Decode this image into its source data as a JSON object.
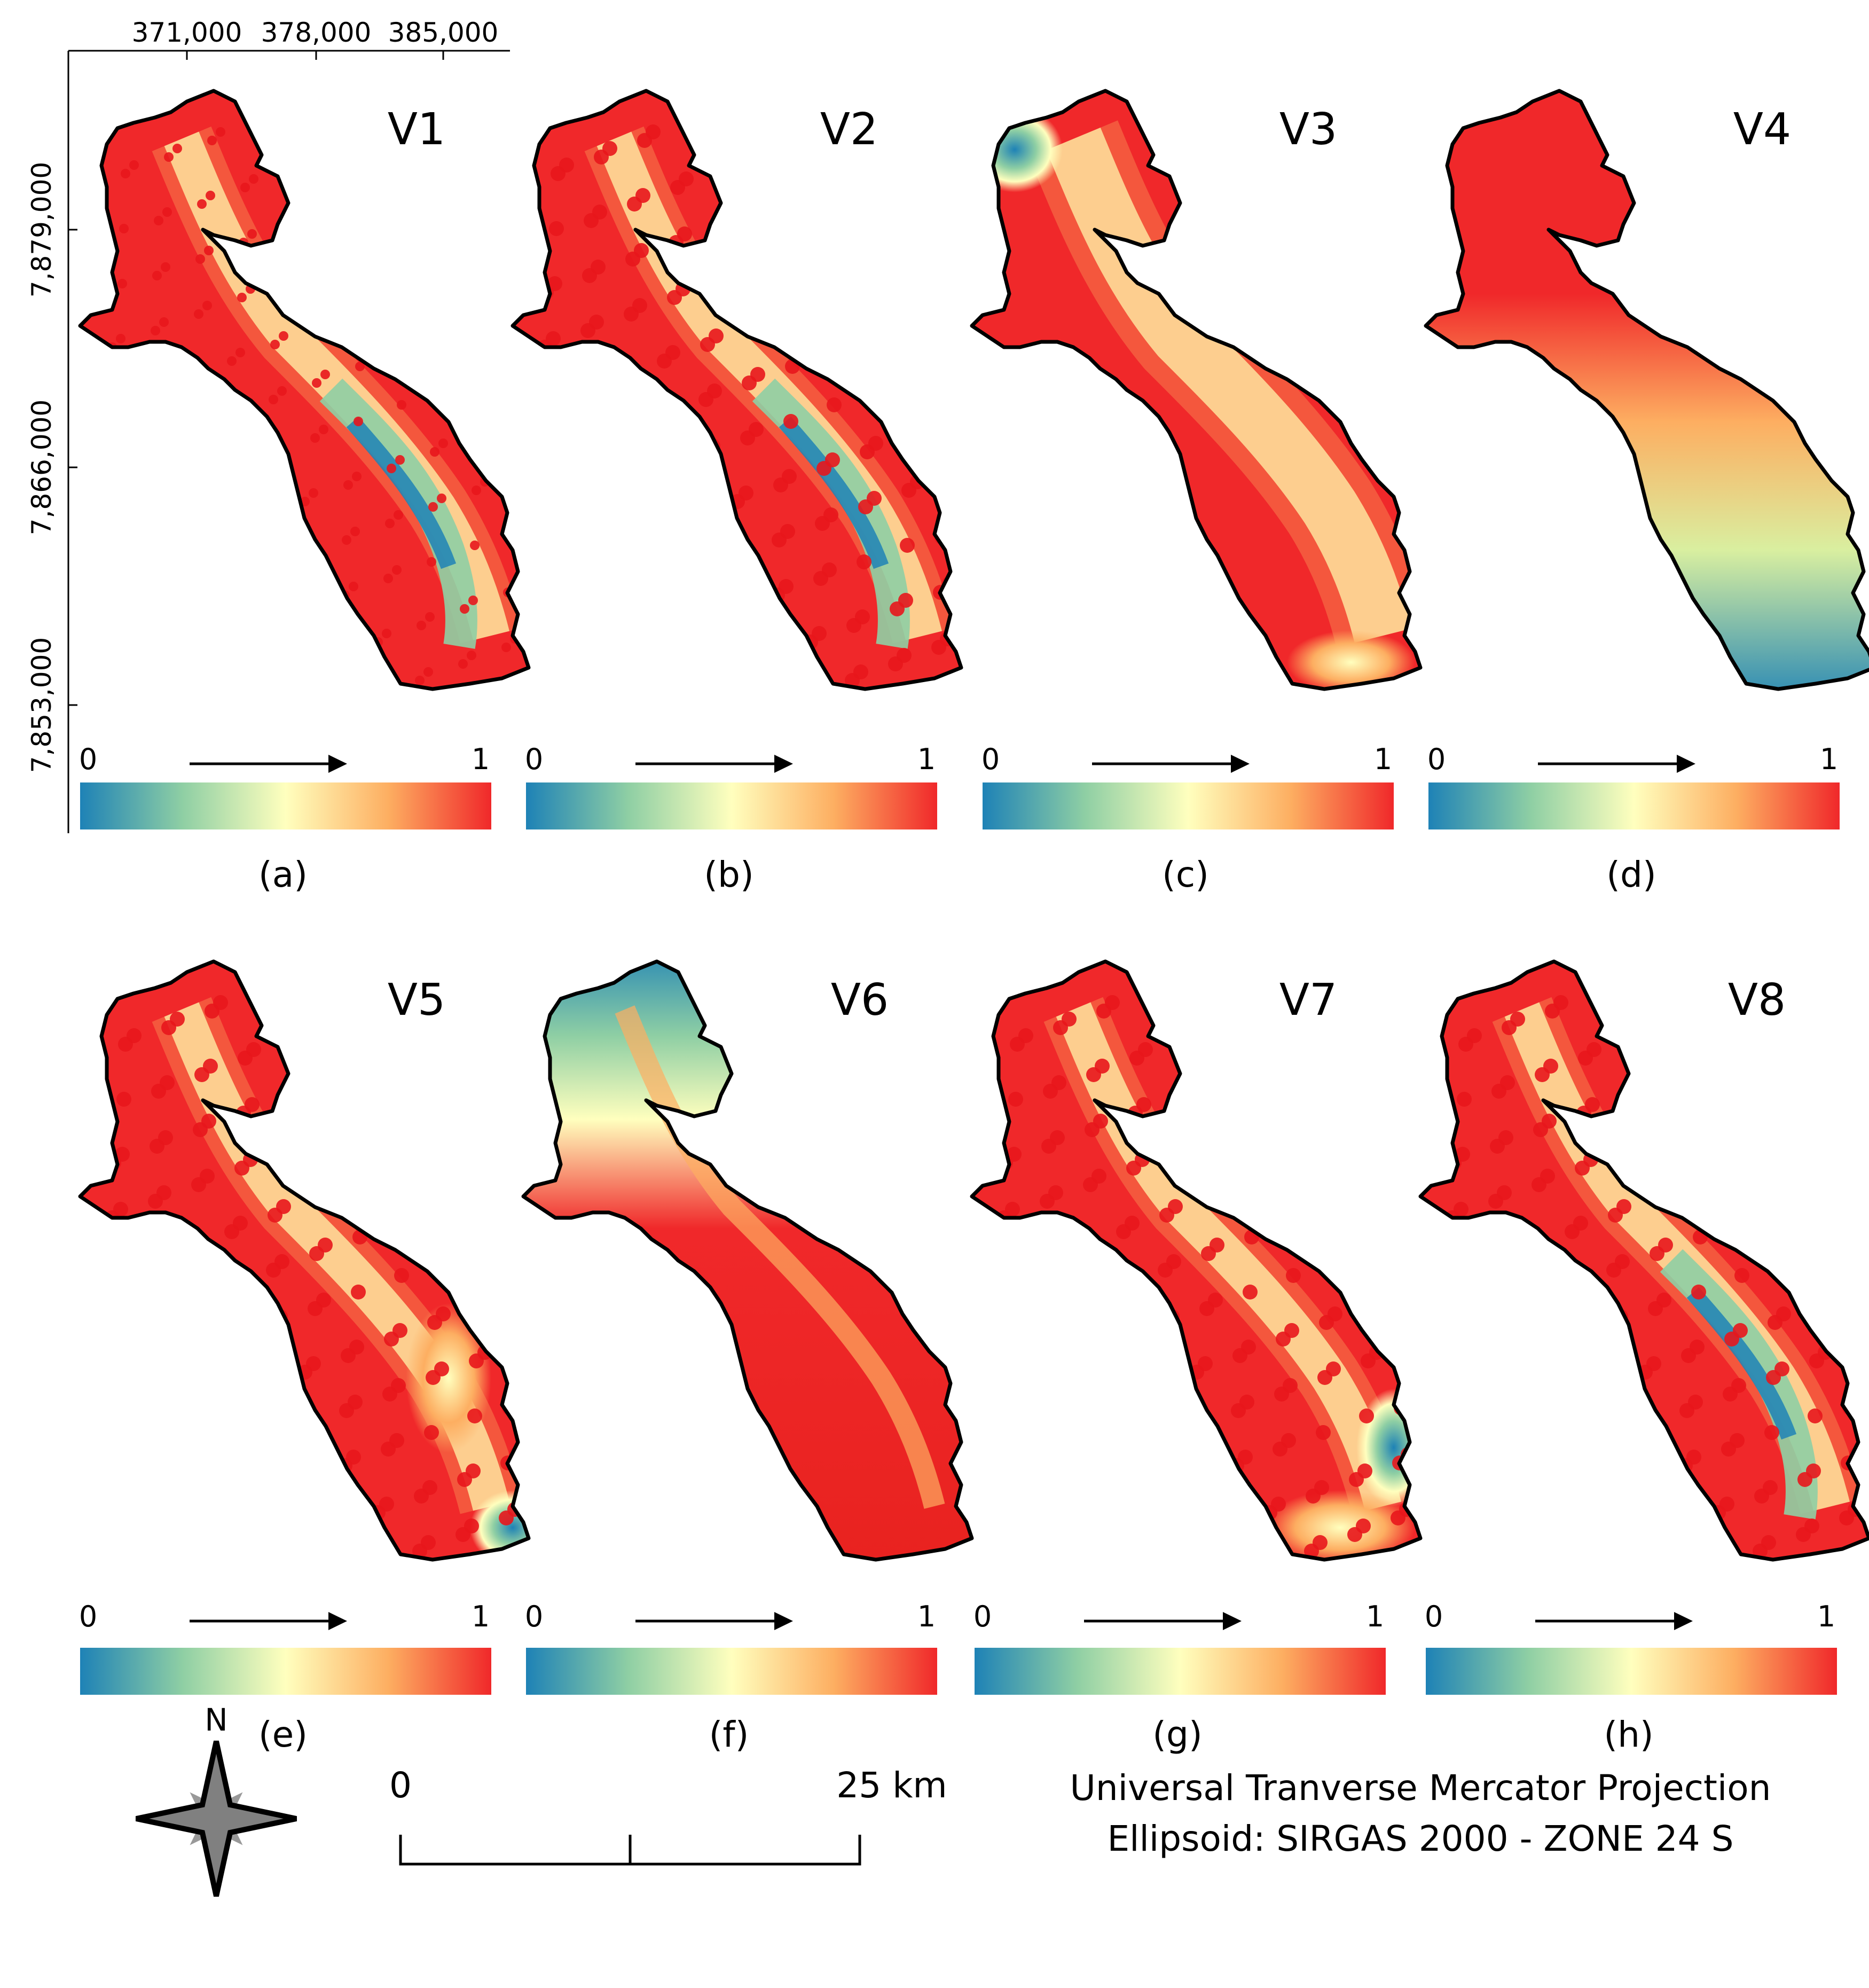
{
  "axes": {
    "x_ticks": [
      "371,000",
      "378,000",
      "385,000"
    ],
    "y_ticks": [
      "7,879,000",
      "7,866,000",
      "7,853,000"
    ]
  },
  "colorbar": {
    "colors": [
      "#1e82b6",
      "#8fcfa4",
      "#ffffbe",
      "#fdae61",
      "#f0282a"
    ],
    "min_label": "0",
    "max_label": "1"
  },
  "panels": [
    {
      "title": "V1",
      "caption": "(a)",
      "pattern": "dense spots, blue valley along center",
      "hex": "#f0282a"
    },
    {
      "title": "V2",
      "caption": "(b)",
      "pattern": "dense red network, blue valley along center",
      "hex": "#f0282a"
    },
    {
      "title": "V3",
      "caption": "(c)",
      "pattern": "smooth red with light corridors, blue at NW tip",
      "hex": "#f0282a"
    },
    {
      "title": "V4",
      "caption": "(d)",
      "pattern": "north-south gradient: red north to blue south",
      "hex": "#f0282a"
    },
    {
      "title": "V5",
      "caption": "(e)",
      "pattern": "red with yellow central channel, blue at SE tip",
      "hex": "#f0282a"
    },
    {
      "title": "V6",
      "caption": "(f)",
      "pattern": "north blue to south red gradient with central ridge",
      "hex": "#f0282a"
    },
    {
      "title": "V7",
      "caption": "(g)",
      "pattern": "red network with light channels, blue patch SE",
      "hex": "#f0282a"
    },
    {
      "title": "V8",
      "caption": "(h)",
      "pattern": "red network with blue valley along center",
      "hex": "#f0282a"
    }
  ],
  "north_arrow": {
    "label": "N"
  },
  "scale_bar": {
    "start_label": "0",
    "end_label": "25 km"
  },
  "projection": {
    "line1": "Universal Tranverse  Mercator Projection",
    "line2": "Ellipsoid:  SIRGAS 2000 - ZONE 24 S"
  }
}
